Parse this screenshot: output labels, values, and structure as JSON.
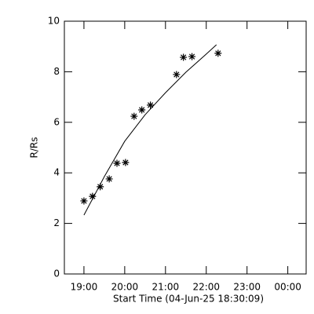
{
  "chart_data": {
    "type": "scatter",
    "x_label": "Start Time (04-Jun-25 18:30:09)",
    "y_label": "R/Rs",
    "x": [
      19.0,
      19.21,
      19.4,
      19.62,
      19.81,
      20.02,
      20.23,
      20.42,
      20.63,
      21.27,
      21.44,
      21.65,
      22.29
    ],
    "values": [
      2.89,
      3.07,
      3.45,
      3.76,
      4.38,
      4.41,
      6.24,
      6.49,
      6.68,
      7.89,
      8.57,
      8.6,
      8.73
    ],
    "fit": {
      "x": [
        19.0,
        19.5,
        20.0,
        20.5,
        21.0,
        21.5,
        22.0,
        22.25
      ],
      "values": [
        2.33,
        3.85,
        5.25,
        6.3,
        7.17,
        7.98,
        8.7,
        9.07
      ]
    },
    "color": "#000000",
    "xlim": [
      18.52,
      24.45
    ],
    "ylim": [
      0,
      10
    ],
    "xticks": [
      {
        "value": 19,
        "label": "19:00"
      },
      {
        "value": 20,
        "label": "20:00"
      },
      {
        "value": 21,
        "label": "21:00"
      },
      {
        "value": 22,
        "label": "22:00"
      },
      {
        "value": 23,
        "label": "23:00"
      },
      {
        "value": 24,
        "label": "00:00"
      }
    ],
    "yticks": [
      0,
      2,
      4,
      6,
      8,
      10
    ]
  }
}
